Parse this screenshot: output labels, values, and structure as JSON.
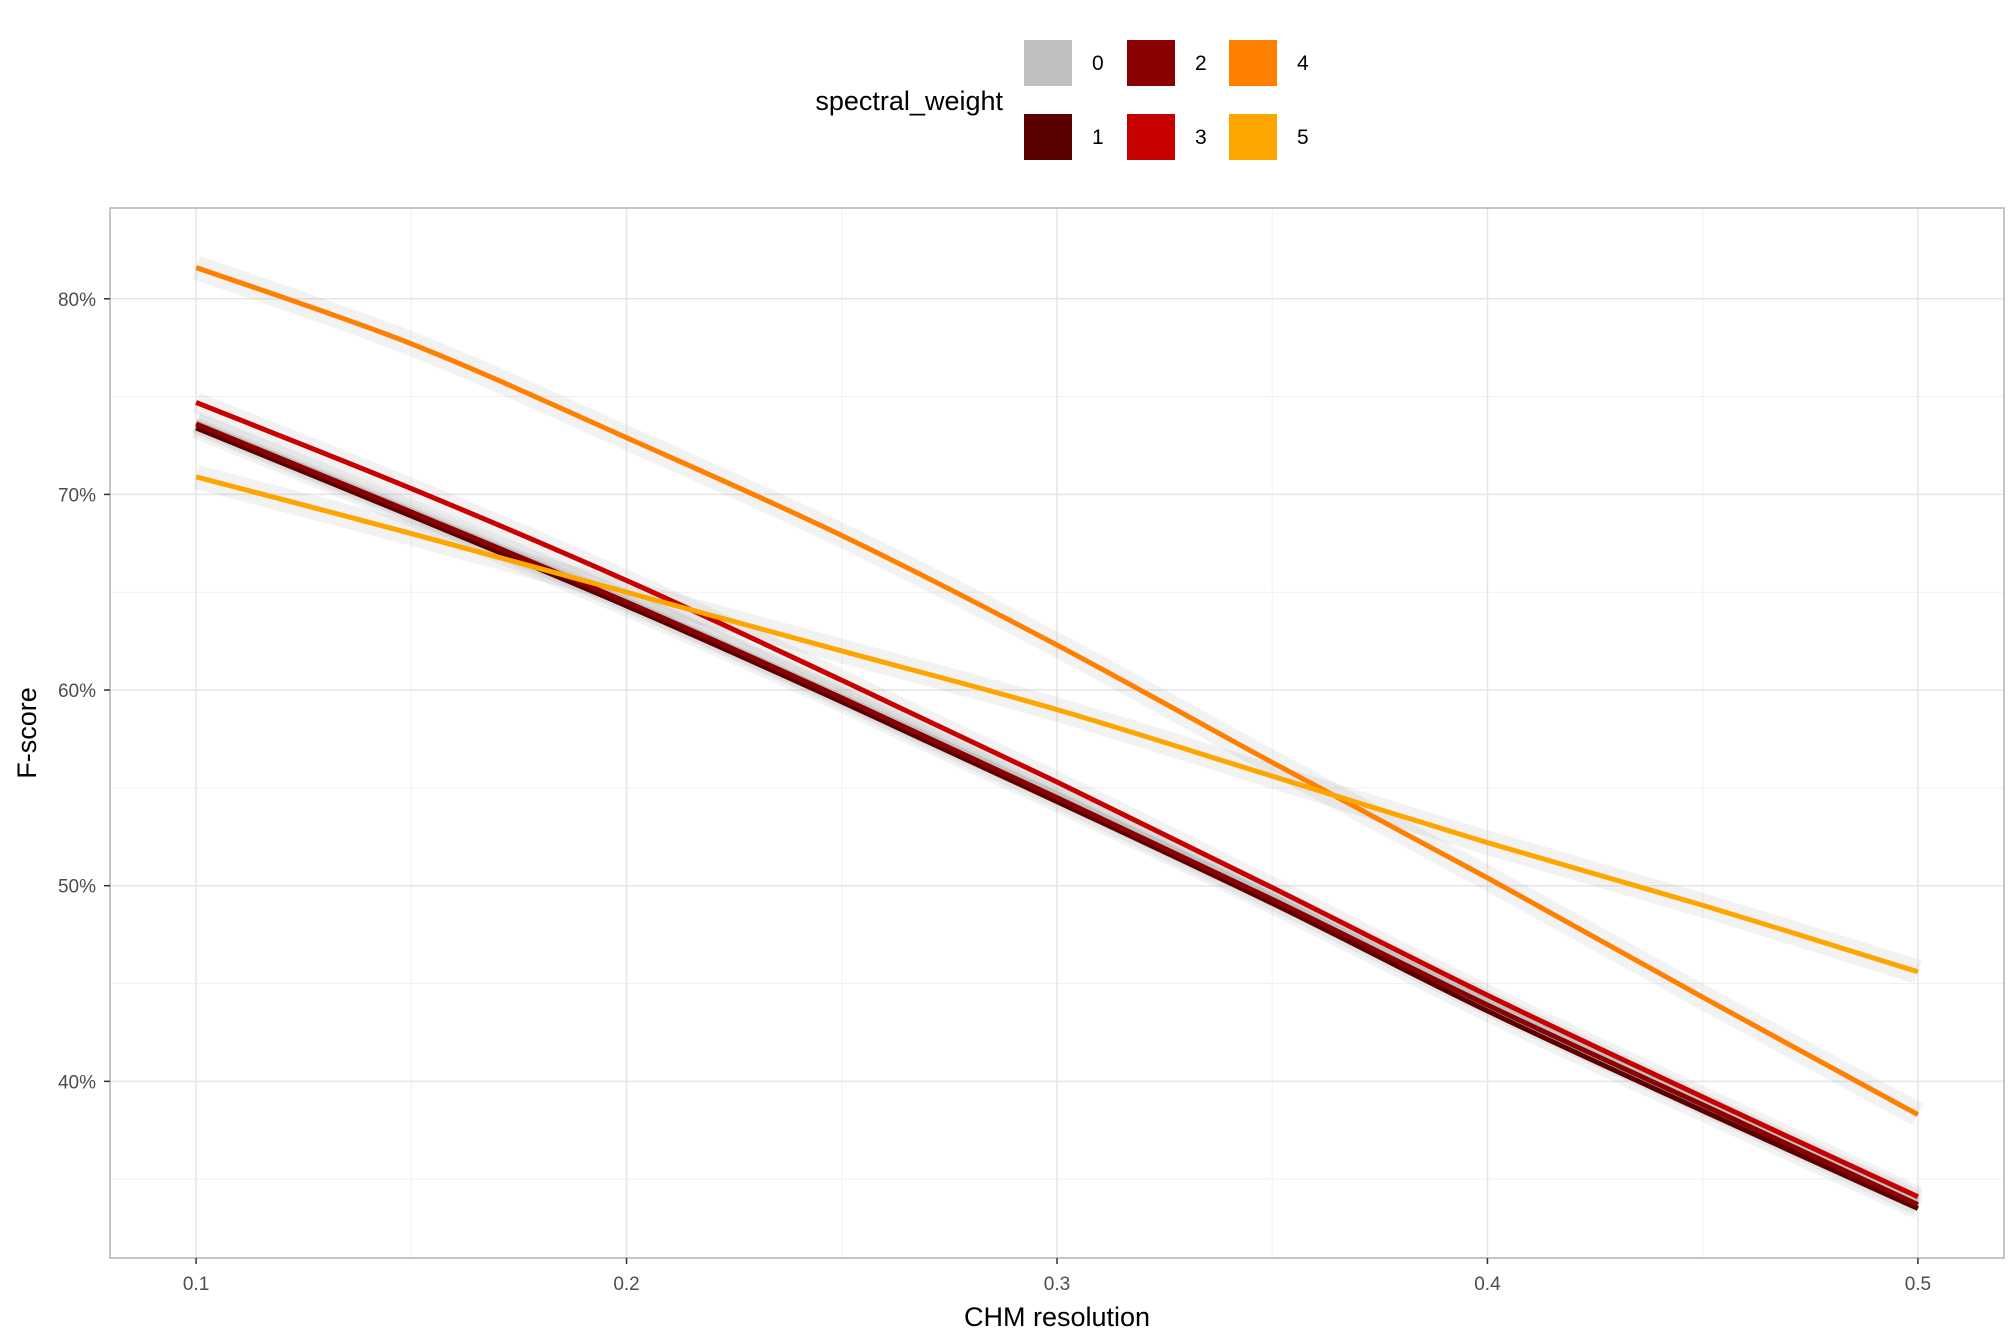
{
  "chart_data": {
    "type": "line",
    "xlabel": "CHM resolution",
    "ylabel": "F-score",
    "xlim": [
      0.08,
      0.52
    ],
    "ylim": [
      0.3097,
      0.8464
    ],
    "x_ticks": [
      0.1,
      0.2,
      0.3,
      0.4,
      0.5
    ],
    "x_tick_labels": [
      "0.1",
      "0.2",
      "0.3",
      "0.4",
      "0.5"
    ],
    "y_ticks": [
      0.4,
      0.5,
      0.6,
      0.7,
      0.8
    ],
    "y_tick_labels": [
      "40%",
      "50%",
      "60%",
      "70%",
      "80%"
    ],
    "grid": true,
    "confidence_band": true,
    "legend": {
      "title": "spectral_weight",
      "position": "top"
    },
    "series": [
      {
        "name": "0",
        "color": "#C0C0C0",
        "x": [
          0.1,
          0.15,
          0.2,
          0.25,
          0.3,
          0.35,
          0.4,
          0.45,
          0.5
        ],
        "y": [
          0.737,
          0.692,
          0.646,
          0.597,
          0.547,
          0.495,
          0.441,
          0.389,
          0.339
        ]
      },
      {
        "name": "1",
        "color": "#5A0000",
        "x": [
          0.1,
          0.15,
          0.2,
          0.25,
          0.3,
          0.35,
          0.4,
          0.45,
          0.5
        ],
        "y": [
          0.734,
          0.689,
          0.643,
          0.594,
          0.543,
          0.491,
          0.436,
          0.385,
          0.335
        ]
      },
      {
        "name": "2",
        "color": "#8B0000",
        "x": [
          0.1,
          0.15,
          0.2,
          0.25,
          0.3,
          0.35,
          0.4,
          0.45,
          0.5
        ],
        "y": [
          0.736,
          0.691,
          0.645,
          0.596,
          0.545,
          0.493,
          0.439,
          0.388,
          0.337
        ]
      },
      {
        "name": "3",
        "color": "#C80000",
        "x": [
          0.1,
          0.15,
          0.2,
          0.25,
          0.3,
          0.35,
          0.4,
          0.45,
          0.5
        ],
        "y": [
          0.747,
          0.703,
          0.656,
          0.605,
          0.553,
          0.499,
          0.444,
          0.392,
          0.341
        ]
      },
      {
        "name": "4",
        "color": "#FF7F00",
        "x": [
          0.1,
          0.15,
          0.2,
          0.25,
          0.3,
          0.35,
          0.4,
          0.45,
          0.5
        ],
        "y": [
          0.816,
          0.777,
          0.729,
          0.679,
          0.623,
          0.563,
          0.504,
          0.443,
          0.383
        ]
      },
      {
        "name": "5",
        "color": "#FFA500",
        "x": [
          0.1,
          0.15,
          0.2,
          0.25,
          0.3,
          0.35,
          0.4,
          0.45,
          0.5
        ],
        "y": [
          0.709,
          0.68,
          0.65,
          0.62,
          0.59,
          0.556,
          0.522,
          0.49,
          0.456
        ]
      }
    ]
  }
}
